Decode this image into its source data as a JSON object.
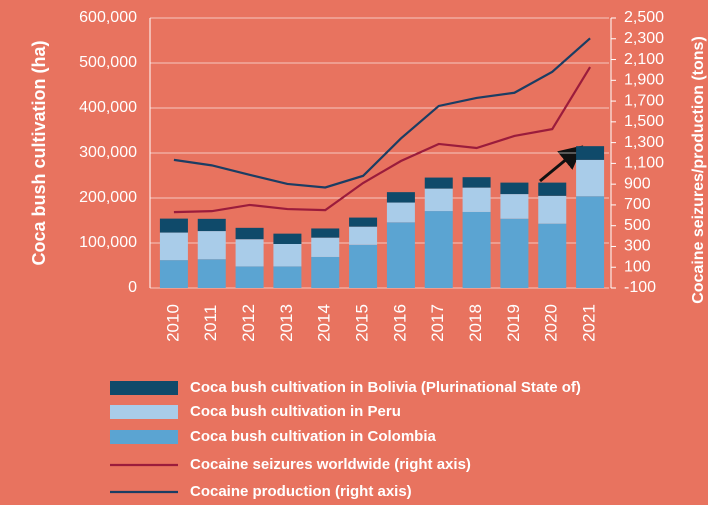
{
  "chart_data": {
    "type": "bar",
    "stacked": true,
    "categories": [
      "2010",
      "2011",
      "2012",
      "2013",
      "2014",
      "2015",
      "2016",
      "2017",
      "2018",
      "2019",
      "2020",
      "2021"
    ],
    "ylabel": "Coca bush cultivation (ha)",
    "y2label": "Cocaine seizures/production (tons)",
    "ylim": [
      0,
      600000
    ],
    "yticks": [
      0,
      {
        "value": 100000,
        "label": "100,000"
      },
      {
        "value": 200000,
        "label": "200,000"
      },
      {
        "value": 300000,
        "label": "300,000"
      },
      {
        "value": 400000,
        "label": "400,000"
      },
      {
        "value": 500000,
        "label": "500,000"
      },
      {
        "value": 600000,
        "label": "600,000"
      }
    ],
    "y2lim": [
      -100,
      2500
    ],
    "y2ticks": [
      -100,
      100,
      300,
      500,
      700,
      900,
      {
        "value": 1100,
        "label": "1,100"
      },
      {
        "value": 1300,
        "label": "1,300"
      },
      {
        "value": 1500,
        "label": "1,500"
      },
      {
        "value": 1700,
        "label": "1,700"
      },
      {
        "value": 1900,
        "label": "1,900"
      },
      {
        "value": 2100,
        "label": "2,100"
      },
      {
        "value": 2300,
        "label": "2,300"
      },
      {
        "value": 2500,
        "label": "2,500"
      }
    ],
    "grid": true,
    "series": [
      {
        "name": "Coca bush cultivation in Colombia",
        "type": "bar",
        "color": "#5ba4d2",
        "values": [
          62000,
          64000,
          48000,
          48000,
          69000,
          96000,
          146000,
          171000,
          169000,
          154000,
          143000,
          204000
        ]
      },
      {
        "name": "Coca bush cultivation in Peru",
        "type": "bar",
        "color": "#a9cce9",
        "values": [
          61200,
          62500,
          60400,
          49800,
          42900,
          40300,
          43900,
          49900,
          54100,
          54700,
          61800,
          80700
        ]
      },
      {
        "name": "Coca bush cultivation in Bolivia (Plurinational State of)",
        "type": "bar",
        "color": "#0f4a6a",
        "values": [
          31000,
          27200,
          25300,
          23000,
          20400,
          20200,
          23100,
          24500,
          23100,
          25500,
          29400,
          30500
        ]
      },
      {
        "name": "Cocaine seizures worldwide (right axis)",
        "type": "line",
        "axis": "y2",
        "color": "#9b1c3c",
        "values": [
          631,
          640,
          700,
          660,
          650,
          911,
          1123,
          1287,
          1248,
          1364,
          1430,
          2028
        ]
      },
      {
        "name": "Cocaine production (right axis)",
        "type": "line",
        "axis": "y2",
        "color": "#1b3d63",
        "values": [
          1134,
          1081,
          990,
          902,
          868,
          980,
          1340,
          1653,
          1730,
          1780,
          1982,
          2304
        ]
      }
    ],
    "legend_order": [
      2,
      1,
      0,
      3,
      4
    ]
  }
}
